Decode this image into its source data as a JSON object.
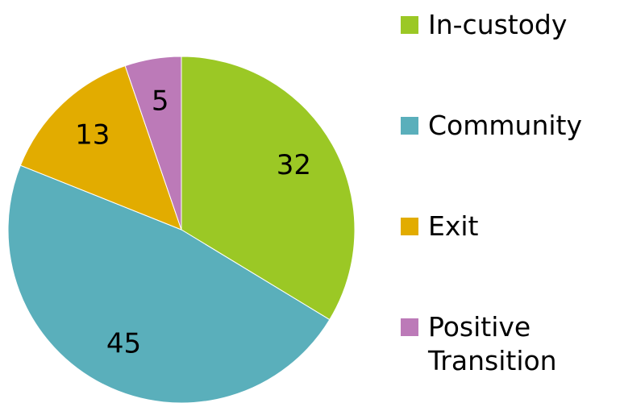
{
  "chart_data": {
    "type": "pie",
    "categories": [
      "In-custody",
      "Community",
      "Exit",
      "Positive Transition"
    ],
    "values": [
      32,
      45,
      13,
      5
    ],
    "colors": [
      "#9bc825",
      "#5aafbb",
      "#e2ac00",
      "#bc7ab8"
    ],
    "legend": "right"
  }
}
